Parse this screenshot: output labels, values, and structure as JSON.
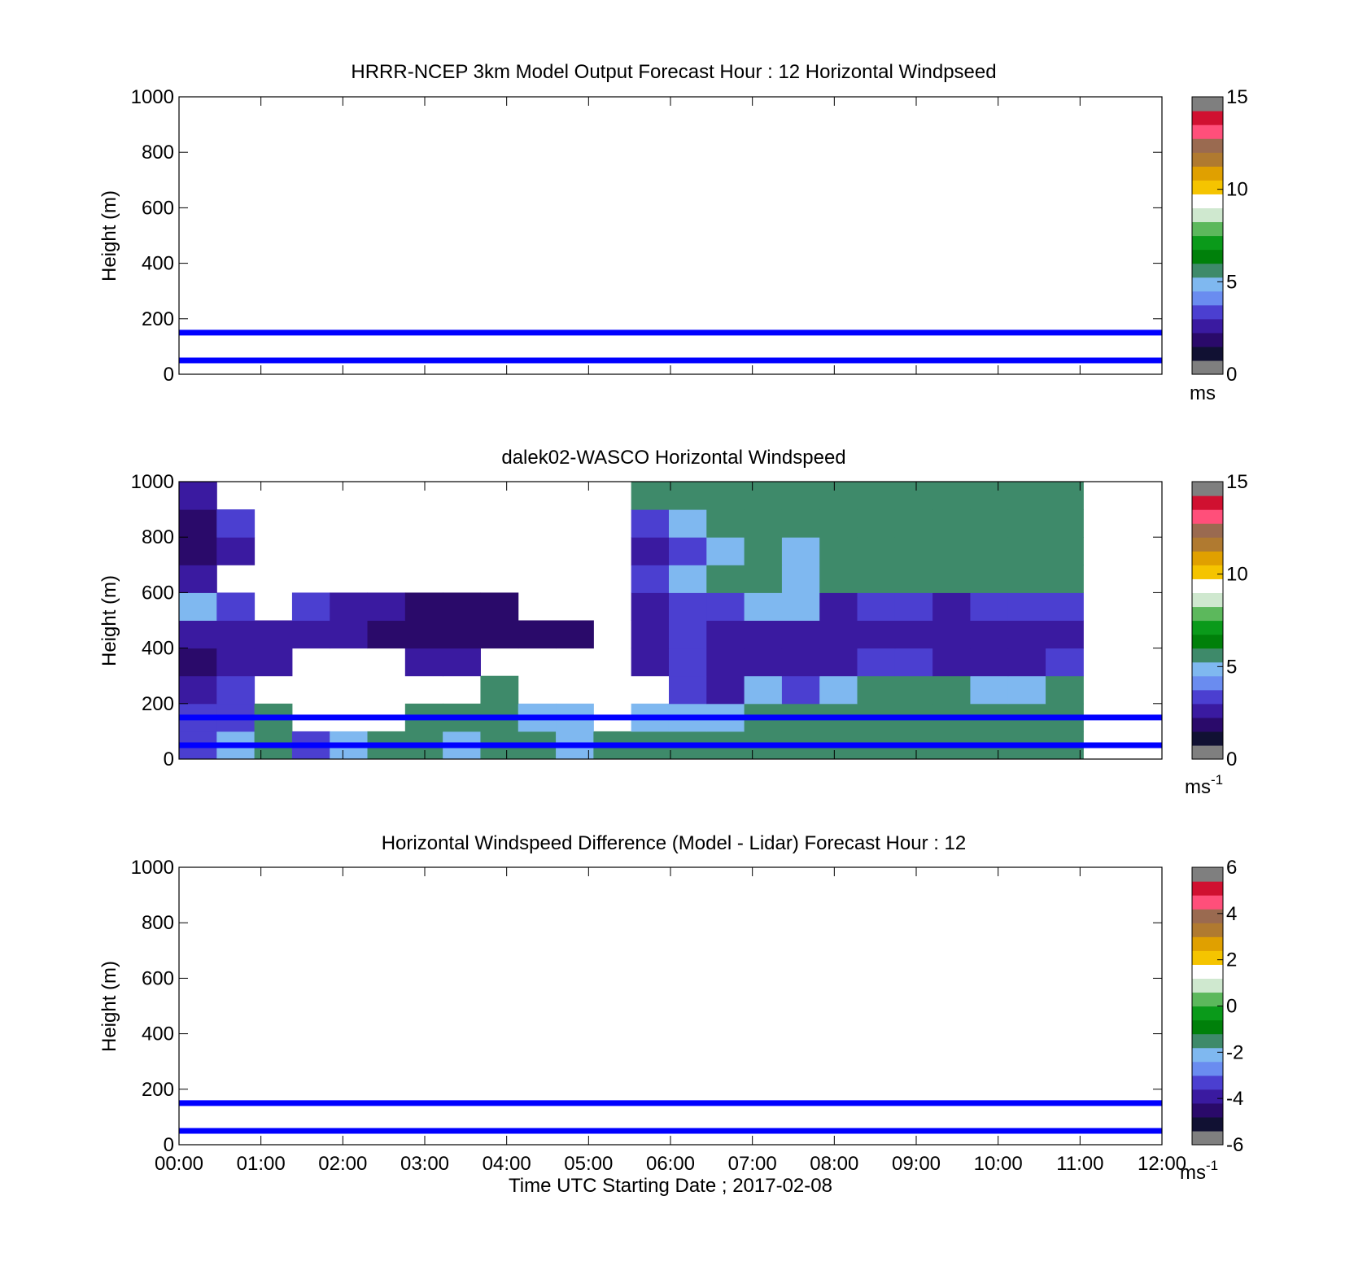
{
  "colors": {
    "ref_line": "#0000ff",
    "axis": "#000000",
    "speed_scale": [
      "#7f7f7f",
      "#111133",
      "#2a0a6a",
      "#3a1aa0",
      "#4b3fd0",
      "#6a8cf0",
      "#7fb8f0",
      "#3e8a6a",
      "#00800a",
      "#0a9a1a",
      "#5cb85c",
      "#cfe8cf",
      "#ffffff",
      "#f5c400",
      "#e0a000",
      "#b07a30",
      "#9a6a50",
      "#ff4f7a",
      "#d01030",
      "#7f7f7f"
    ],
    "diff_scale": [
      "#7f7f7f",
      "#111133",
      "#2a0a6a",
      "#3a1aa0",
      "#4b3fd0",
      "#6a8cf0",
      "#7fb8f0",
      "#3e8a6a",
      "#00800a",
      "#0a9a1a",
      "#5cb85c",
      "#cfe8cf",
      "#ffffff",
      "#f5c400",
      "#e0a000",
      "#b07a30",
      "#9a6a50",
      "#ff4f7a",
      "#d01030",
      "#7f7f7f"
    ]
  },
  "chart_data": [
    {
      "type": "heatmap",
      "title": "HRRR-NCEP 3km Model Output   Forecast Hour : 12 Horizontal Windpseed",
      "ylabel": "Height (m)",
      "ylim": [
        0,
        1000
      ],
      "yticks": [
        "0",
        "200",
        "400",
        "600",
        "800",
        "1000"
      ],
      "xlim": [
        "00:00",
        "12:00"
      ],
      "x_tick_count": 13,
      "values": [],
      "reference_lines_m": [
        50,
        150
      ],
      "colorbar": {
        "range": [
          0,
          15
        ],
        "ticks": [
          "0",
          "5",
          "10",
          "15"
        ],
        "unit": "ms",
        "unit_superscript": ""
      }
    },
    {
      "type": "heatmap",
      "title": "dalek02-WASCO  Horizontal Windspeed",
      "ylabel": "Height (m)",
      "ylim": [
        0,
        1000
      ],
      "yticks": [
        "0",
        "200",
        "400",
        "600",
        "800",
        "1000"
      ],
      "xlim": [
        "00:00",
        "12:00"
      ],
      "x_tick_count": 13,
      "height_bins": [
        "0-100",
        "100-200",
        "200-300",
        "300-400",
        "400-500",
        "500-600",
        "600-700",
        "700-800",
        "800-900",
        "900-1000"
      ],
      "time_bins": [
        "00:00",
        "00:30",
        "01:00",
        "01:30",
        "02:00",
        "02:30",
        "03:00",
        "03:30",
        "04:00",
        "04:30",
        "05:00",
        "05:30",
        "06:00",
        "06:30",
        "07:00",
        "07:30",
        "08:00",
        "08:30",
        "09:00",
        "09:30",
        "10:00",
        "10:30",
        "11:00",
        "11:30"
      ],
      "values": [
        [
          3,
          4,
          5,
          3,
          4,
          5,
          5,
          4,
          5,
          5,
          4,
          5,
          5,
          5,
          5,
          5,
          5,
          5,
          5,
          5,
          5,
          5,
          5,
          5
        ],
        [
          3,
          3,
          5,
          null,
          null,
          null,
          5,
          5,
          5,
          4,
          4,
          null,
          4,
          4,
          4,
          5,
          5,
          5,
          5,
          5,
          5,
          5,
          5,
          5
        ],
        [
          2,
          3,
          null,
          null,
          null,
          null,
          null,
          null,
          5,
          null,
          null,
          null,
          null,
          3,
          2,
          4,
          3,
          4,
          5,
          5,
          5,
          4,
          4,
          5
        ],
        [
          1,
          2,
          2,
          null,
          null,
          null,
          2,
          2,
          null,
          null,
          null,
          null,
          2,
          3,
          2,
          2,
          2,
          2,
          3,
          3,
          2,
          2,
          2,
          3
        ],
        [
          2,
          2,
          2,
          2,
          2,
          1,
          1,
          1,
          1,
          1,
          1,
          null,
          2,
          3,
          2,
          2,
          2,
          2,
          2,
          2,
          2,
          2,
          2,
          2
        ],
        [
          4,
          3,
          null,
          3,
          2,
          2,
          1,
          1,
          1,
          null,
          null,
          null,
          2,
          3,
          3,
          4,
          4,
          2,
          3,
          3,
          2,
          3,
          3,
          3
        ],
        [
          2,
          null,
          null,
          null,
          null,
          null,
          null,
          null,
          null,
          null,
          null,
          null,
          3,
          4,
          5,
          5,
          4,
          5,
          5,
          5,
          5,
          5,
          5,
          5
        ],
        [
          1,
          2,
          null,
          null,
          null,
          null,
          null,
          null,
          null,
          null,
          null,
          null,
          2,
          3,
          4,
          5,
          4,
          5,
          5,
          5,
          5,
          5,
          5,
          5
        ],
        [
          1,
          3,
          null,
          null,
          null,
          null,
          null,
          null,
          null,
          null,
          null,
          null,
          3,
          4,
          5,
          5,
          5,
          5,
          5,
          5,
          5,
          5,
          5,
          5
        ],
        [
          2,
          null,
          null,
          null,
          null,
          null,
          null,
          null,
          null,
          null,
          null,
          null,
          5,
          5,
          5,
          5,
          5,
          5,
          5,
          5,
          5,
          5,
          5,
          5
        ]
      ],
      "reference_lines_m": [
        50,
        150
      ],
      "colorbar": {
        "range": [
          0,
          15
        ],
        "ticks": [
          "0",
          "5",
          "10",
          "15"
        ],
        "unit": "ms",
        "unit_superscript": "-1"
      }
    },
    {
      "type": "heatmap",
      "title": "Horizontal Windspeed Difference (Model - Lidar) Forecast Hour : 12",
      "ylabel": "Height (m)",
      "xlabel": "Time UTC  Starting Date ; 2017-02-08",
      "ylim": [
        0,
        1000
      ],
      "yticks": [
        "0",
        "200",
        "400",
        "600",
        "800",
        "1000"
      ],
      "xlim": [
        "00:00",
        "12:00"
      ],
      "xticks": [
        "00:00",
        "01:00",
        "02:00",
        "03:00",
        "04:00",
        "05:00",
        "06:00",
        "07:00",
        "08:00",
        "09:00",
        "10:00",
        "11:00",
        "12:00"
      ],
      "values": [],
      "reference_lines_m": [
        50,
        150
      ],
      "colorbar": {
        "range": [
          -6,
          6
        ],
        "ticks": [
          "-6",
          "-4",
          "-2",
          "0",
          "2",
          "4",
          "6"
        ],
        "unit": "ms",
        "unit_superscript": "-1"
      }
    }
  ]
}
